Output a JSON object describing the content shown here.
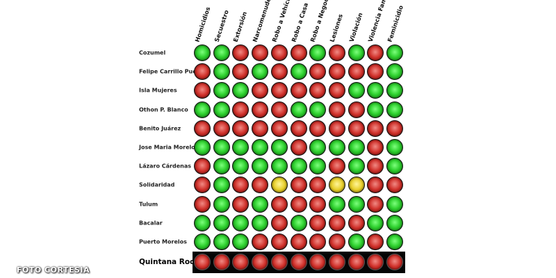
{
  "columns": [
    "Homicidios",
    "Secuestro",
    "Extorsión",
    "Narcomenudeo",
    "Robo a Vehículo",
    "Robo a Casa",
    "Robo a Negocio",
    "Lesiones",
    "Violación",
    "Violencia Fam.",
    "Feminicidio"
  ],
  "legend_colors": {
    "G": "#2fd12f",
    "R": "#d0302a",
    "Y": "#e8cf2a"
  },
  "rows": [
    {
      "name": "Cozumel",
      "status": "GGRRRRGRGRG"
    },
    {
      "name": "Felipe Carrillo Puerto",
      "status": "RGRGRGRRRRG"
    },
    {
      "name": "Isla Mujeres",
      "status": "RGGRRRRRGGG"
    },
    {
      "name": "Othon P. Blanco",
      "status": "GGRRRGGRRGG"
    },
    {
      "name": "Benito Juárez",
      "status": "RRRRRRRRRRR"
    },
    {
      "name": "Jose Maria Morelos",
      "status": "GGGGGRGGGRG"
    },
    {
      "name": "Lázaro Cárdenas",
      "status": "RGGGGGGRGRG"
    },
    {
      "name": "Solidaridad",
      "status": "RGRRYRRYYRR"
    },
    {
      "name": "Tulum",
      "status": "RGRGRRRGGRG"
    },
    {
      "name": "Bacalar",
      "status": "GGGGRGRRRGG"
    },
    {
      "name": "Puerto Morelos",
      "status": "GGGRRRRRGRG"
    }
  ],
  "total": {
    "name": "Quintana Roo",
    "status": "RRRRRRRRRRR"
  },
  "credit": "FOTO CORTESIA"
}
